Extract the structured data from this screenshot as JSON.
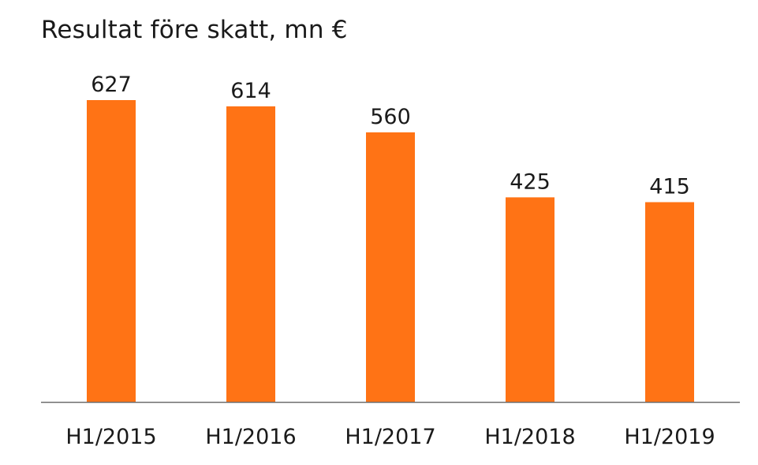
{
  "chart_data": {
    "type": "bar",
    "title": "Resultat före skatt, mn €",
    "categories": [
      "H1/2015",
      "H1/2016",
      "H1/2017",
      "H1/2018",
      "H1/2019"
    ],
    "values": [
      627,
      614,
      560,
      425,
      415
    ],
    "data_labels": [
      "627",
      "614",
      "560",
      "425",
      "415"
    ],
    "xlabel": "",
    "ylabel": "",
    "ylim": [
      0,
      627
    ],
    "grid": false,
    "legend": "none",
    "bar_color": "#FF7315",
    "axis_color": "#6e6e6e"
  }
}
